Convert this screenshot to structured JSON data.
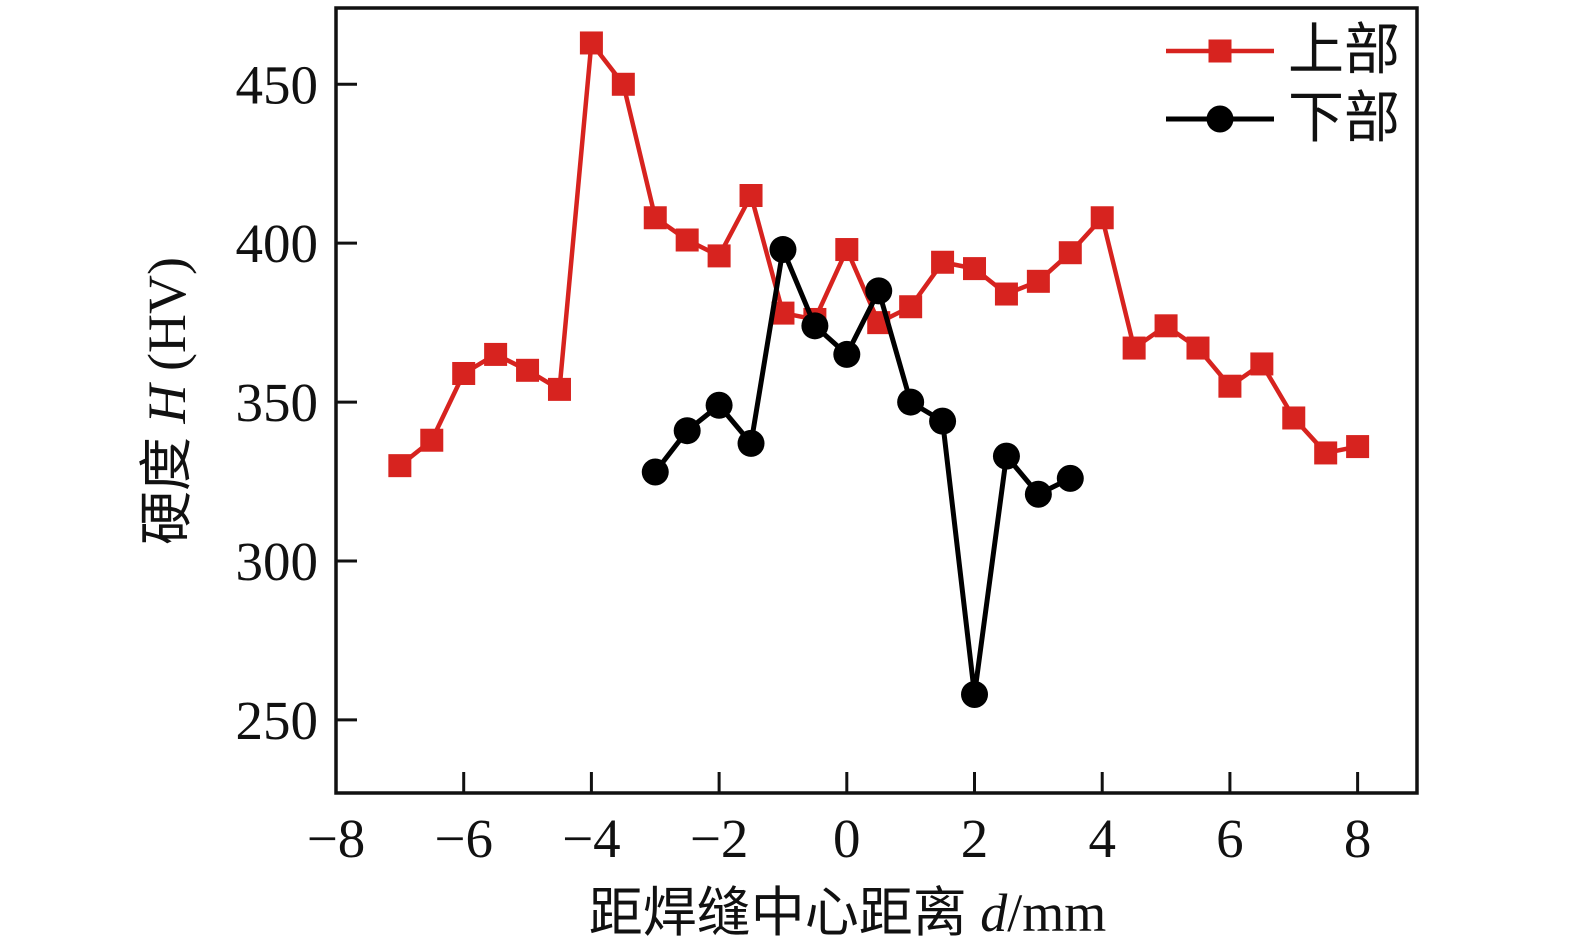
{
  "chart_data": {
    "type": "line",
    "title": "",
    "xlabel": {
      "prefix": "距焊缝中心距离",
      "var": "d",
      "suffix": "/mm"
    },
    "ylabel": {
      "prefix": "硬度",
      "var": "H",
      "suffix": "(HV)"
    },
    "xlim": [
      -8,
      8.93
    ],
    "ylim": [
      227,
      474
    ],
    "xticks": [
      -8,
      -6,
      -4,
      -2,
      0,
      2,
      4,
      6,
      8
    ],
    "yticks": [
      250,
      300,
      350,
      400,
      450
    ],
    "grid": false,
    "frame_color": "#111111",
    "legend_position": "top-right-inside",
    "legend": {
      "items": [
        {
          "label": "上部",
          "color": "#d7231f",
          "marker": "square"
        },
        {
          "label": "下部",
          "color": "#000000",
          "marker": "circle"
        }
      ]
    },
    "series": [
      {
        "name": "上部",
        "color": "#d7231f",
        "marker": "square",
        "points": [
          [
            -7,
            330
          ],
          [
            -6.5,
            338
          ],
          [
            -6,
            359
          ],
          [
            -5.5,
            365
          ],
          [
            -5,
            360
          ],
          [
            -4.5,
            354
          ],
          [
            -4,
            463
          ],
          [
            -3.5,
            450
          ],
          [
            -3,
            408
          ],
          [
            -2.5,
            401
          ],
          [
            -2,
            396
          ],
          [
            -1.5,
            415
          ],
          [
            -1,
            378
          ],
          [
            -0.5,
            376
          ],
          [
            0,
            398
          ],
          [
            0.5,
            375
          ],
          [
            1,
            380
          ],
          [
            1.5,
            394
          ],
          [
            2,
            392
          ],
          [
            2.5,
            384
          ],
          [
            3,
            388
          ],
          [
            3.5,
            397
          ],
          [
            4,
            408
          ],
          [
            4.5,
            367
          ],
          [
            5,
            374
          ],
          [
            5.5,
            367
          ],
          [
            6,
            355
          ],
          [
            6.5,
            362
          ],
          [
            7,
            345
          ],
          [
            7.5,
            334
          ],
          [
            8,
            336
          ]
        ]
      },
      {
        "name": "下部",
        "color": "#000000",
        "marker": "circle",
        "points": [
          [
            -3,
            328
          ],
          [
            -2.5,
            341
          ],
          [
            -2,
            349
          ],
          [
            -1.5,
            337
          ],
          [
            -1,
            398
          ],
          [
            -0.5,
            374
          ],
          [
            0,
            365
          ],
          [
            0.5,
            385
          ],
          [
            1,
            350
          ],
          [
            1.5,
            344
          ],
          [
            2,
            258
          ],
          [
            2.5,
            333
          ],
          [
            3,
            321
          ],
          [
            3.5,
            326
          ]
        ]
      }
    ]
  }
}
